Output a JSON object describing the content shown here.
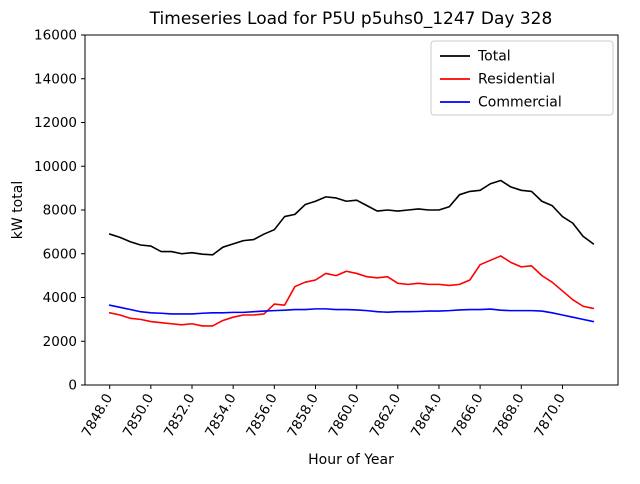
{
  "figure": {
    "background": "#ffffff"
  },
  "chart_data": {
    "type": "line",
    "title": "Timeseries Load for P5U p5uhs0_1247  Day 328",
    "xlabel": "Hour of Year",
    "ylabel": "kW total",
    "xlim": [
      7846.8,
      7872.7
    ],
    "ylim": [
      0,
      16000
    ],
    "grid": false,
    "xticks": [
      7848,
      7850,
      7852,
      7854,
      7856,
      7858,
      7860,
      7862,
      7864,
      7866,
      7868,
      7870
    ],
    "xtick_labels": [
      "7848.0",
      "7850.0",
      "7852.0",
      "7854.0",
      "7856.0",
      "7858.0",
      "7860.0",
      "7862.0",
      "7864.0",
      "7866.0",
      "7868.0",
      "7870.0"
    ],
    "yticks": [
      0,
      2000,
      4000,
      6000,
      8000,
      10000,
      12000,
      14000,
      16000
    ],
    "ytick_labels": [
      "0",
      "2000",
      "4000",
      "6000",
      "8000",
      "10000",
      "12000",
      "14000",
      "16000"
    ],
    "legend": {
      "position": "upper right",
      "background": "#ffffff",
      "border_color": "#cccccc",
      "entries": [
        "Total",
        "Residential",
        "Commercial"
      ]
    },
    "x": [
      7848.0,
      7848.5,
      7849.0,
      7849.5,
      7850.0,
      7850.5,
      7851.0,
      7851.5,
      7852.0,
      7852.5,
      7853.0,
      7853.5,
      7854.0,
      7854.5,
      7855.0,
      7855.5,
      7856.0,
      7856.5,
      7857.0,
      7857.5,
      7858.0,
      7858.5,
      7859.0,
      7859.5,
      7860.0,
      7860.5,
      7861.0,
      7861.5,
      7862.0,
      7862.5,
      7863.0,
      7863.5,
      7864.0,
      7864.5,
      7865.0,
      7865.5,
      7866.0,
      7866.5,
      7867.0,
      7867.5,
      7868.0,
      7868.5,
      7869.0,
      7869.5,
      7870.0,
      7870.5,
      7871.0,
      7871.5
    ],
    "series": [
      {
        "name": "Total",
        "color": "#000000",
        "values": [
          6900,
          6750,
          6550,
          6400,
          6350,
          6100,
          6100,
          6000,
          6050,
          5980,
          5950,
          6300,
          6450,
          6600,
          6650,
          6900,
          7100,
          7700,
          7800,
          8250,
          8400,
          8600,
          8550,
          8400,
          8450,
          8200,
          7950,
          8000,
          7950,
          8000,
          8050,
          8000,
          8000,
          8150,
          8700,
          8850,
          8900,
          9200,
          9350,
          9050,
          8900,
          8850,
          8400,
          8200,
          7700,
          7400,
          6800,
          6450
        ]
      },
      {
        "name": "Residential",
        "color": "#ff0000",
        "values": [
          3300,
          3200,
          3050,
          3000,
          2900,
          2850,
          2800,
          2750,
          2800,
          2700,
          2700,
          2950,
          3100,
          3200,
          3200,
          3250,
          3700,
          3650,
          4500,
          4700,
          4800,
          5100,
          5000,
          5200,
          5100,
          4950,
          4900,
          4950,
          4650,
          4600,
          4650,
          4600,
          4600,
          4550,
          4600,
          4800,
          5500,
          5700,
          5900,
          5600,
          5400,
          5450,
          5000,
          4700,
          4300,
          3900,
          3600,
          3500
        ]
      },
      {
        "name": "Commercial",
        "color": "#0000ff",
        "values": [
          3650,
          3550,
          3450,
          3350,
          3300,
          3280,
          3250,
          3250,
          3250,
          3280,
          3300,
          3300,
          3320,
          3320,
          3350,
          3380,
          3400,
          3420,
          3450,
          3450,
          3480,
          3480,
          3450,
          3450,
          3430,
          3400,
          3350,
          3330,
          3350,
          3350,
          3360,
          3380,
          3380,
          3400,
          3430,
          3450,
          3450,
          3470,
          3420,
          3400,
          3400,
          3400,
          3380,
          3300,
          3200,
          3100,
          3000,
          2900
        ]
      }
    ]
  }
}
